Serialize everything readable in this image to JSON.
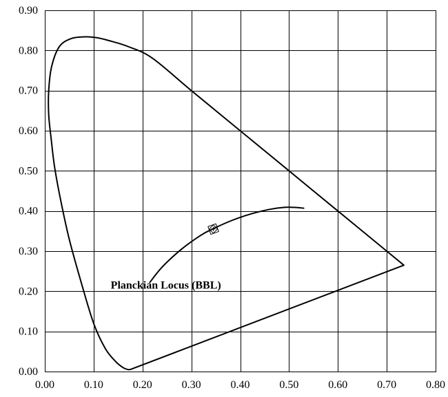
{
  "chart_data": {
    "type": "line",
    "title": "",
    "xlabel": "",
    "ylabel": "",
    "xlim": [
      0.0,
      0.8
    ],
    "ylim": [
      0.0,
      0.9
    ],
    "grid": true,
    "x_ticks": [
      "0.00",
      "0.10",
      "0.20",
      "0.30",
      "0.40",
      "0.50",
      "0.60",
      "0.70",
      "0.80"
    ],
    "y_ticks": [
      "0.00",
      "0.10",
      "0.20",
      "0.30",
      "0.40",
      "0.50",
      "0.60",
      "0.70",
      "0.80",
      "0.90"
    ],
    "series": [
      {
        "key": "spectral-locus",
        "closed": true,
        "x": [
          0.175,
          0.17,
          0.16,
          0.145,
          0.124,
          0.1,
          0.075,
          0.05,
          0.032,
          0.02,
          0.013,
          0.008,
          0.008,
          0.014,
          0.03,
          0.055,
          0.083,
          0.105,
          0.13,
          0.17,
          0.22,
          0.3,
          0.4,
          0.5,
          0.6,
          0.7,
          0.735
        ],
        "y": [
          0.005,
          0.005,
          0.01,
          0.025,
          0.057,
          0.12,
          0.22,
          0.33,
          0.43,
          0.51,
          0.58,
          0.64,
          0.7,
          0.76,
          0.81,
          0.83,
          0.834,
          0.832,
          0.825,
          0.81,
          0.781,
          0.7,
          0.6,
          0.5,
          0.4,
          0.3,
          0.265
        ]
      },
      {
        "key": "planckian-locus",
        "closed": false,
        "x": [
          0.215,
          0.24,
          0.28,
          0.32,
          0.345,
          0.38,
          0.42,
          0.46,
          0.49,
          0.51,
          0.53
        ],
        "y": [
          0.222,
          0.26,
          0.305,
          0.34,
          0.356,
          0.375,
          0.392,
          0.404,
          0.409,
          0.409,
          0.407
        ]
      }
    ],
    "points": [
      {
        "key": "target-point",
        "x": 0.345,
        "y": 0.355,
        "marker": "square-diamond"
      }
    ],
    "annotations": [
      {
        "text": "Planckian Locus (BBL)",
        "x": 0.135,
        "y": 0.215
      }
    ]
  }
}
